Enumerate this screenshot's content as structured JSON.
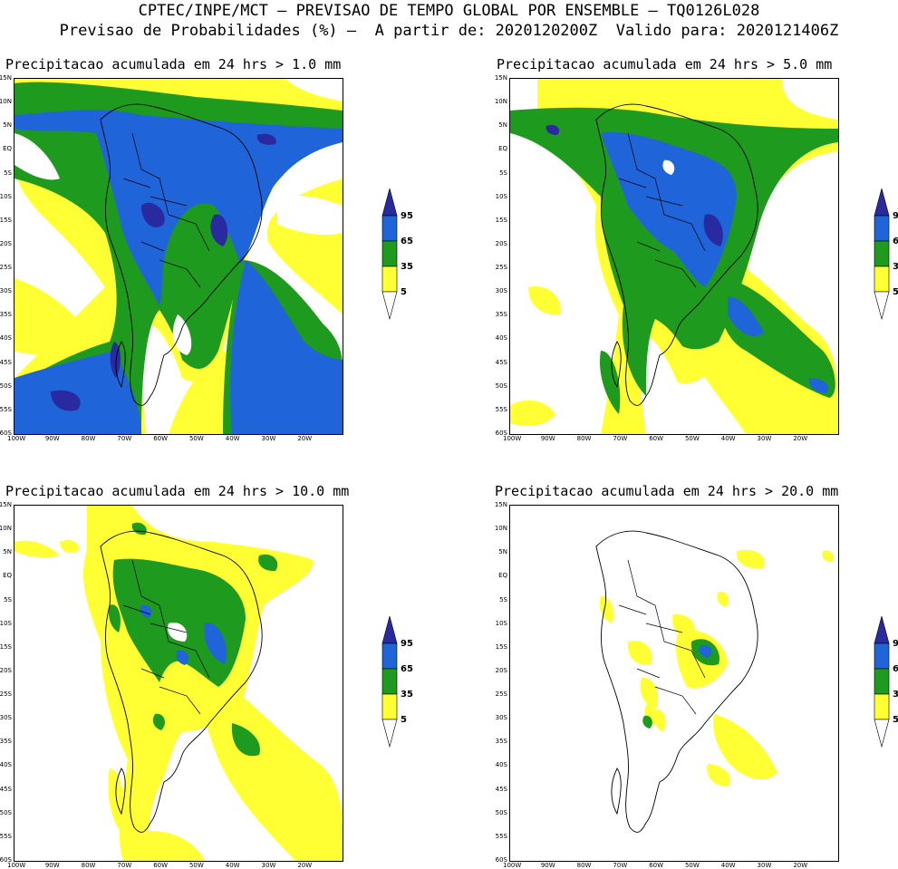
{
  "header": {
    "line1": "CPTEC/INPE/MCT – PREVISAO DE TEMPO GLOBAL POR ENSEMBLE – TQ0126L028",
    "line2": "Previsao de Probabilidades (%) –  A partir de: 2020120200Z  Valido para: 2020121406Z"
  },
  "axes": {
    "lat_labels": [
      "15N",
      "10N",
      "5N",
      "EQ",
      "5S",
      "10S",
      "15S",
      "20S",
      "25S",
      "30S",
      "35S",
      "40S",
      "45S",
      "50S",
      "55S",
      "60S"
    ],
    "lon_labels": [
      "100W",
      "90W",
      "80W",
      "70W",
      "60W",
      "50W",
      "40W",
      "30W",
      "20W"
    ]
  },
  "colorbar": {
    "levels": [
      "95",
      "65",
      "35",
      "5"
    ],
    "colors": {
      "lt5": "#ffffff",
      "p5": "#ffff33",
      "p35": "#1e9b1e",
      "p65": "#1f64d8",
      "p95": "#2a2aa0"
    }
  },
  "panels": [
    {
      "title": "Precipitacao acumulada em 24 hrs > 1.0 mm"
    },
    {
      "title": "Precipitacao acumulada em 24 hrs > 5.0 mm"
    },
    {
      "title": "Precipitacao acumulada em 24 hrs > 10.0 mm"
    },
    {
      "title": "Precipitacao acumulada em 24 hrs > 20.0 mm"
    }
  ]
}
